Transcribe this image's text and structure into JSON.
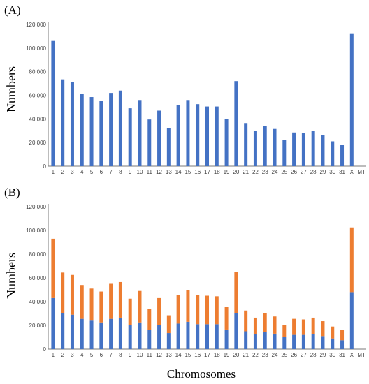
{
  "figure": {
    "xlabel": "Chromosomes",
    "colors": {
      "blue": "#4472c4",
      "orange": "#ed7d31"
    }
  },
  "chart_data": [
    {
      "type": "bar",
      "panel_label": "(A)",
      "ylabel": "Numbers",
      "ylim": [
        0,
        120000
      ],
      "yticks": [
        "0",
        "20,000",
        "40,000",
        "60,000",
        "80,000",
        "100,000",
        "120,000"
      ],
      "categories": [
        "1",
        "2",
        "3",
        "4",
        "5",
        "6",
        "7",
        "8",
        "9",
        "10",
        "11",
        "12",
        "13",
        "14",
        "15",
        "16",
        "17",
        "18",
        "19",
        "20",
        "21",
        "22",
        "23",
        "24",
        "25",
        "26",
        "27",
        "28",
        "29",
        "30",
        "31",
        "X",
        "MT"
      ],
      "series": [
        {
          "color": "#4472c4",
          "values": [
            106000,
            73500,
            71500,
            61000,
            58500,
            55500,
            62000,
            64000,
            49000,
            56000,
            39500,
            47000,
            32500,
            51500,
            56000,
            52500,
            50500,
            50500,
            40000,
            72000,
            36500,
            30000,
            34000,
            31500,
            22000,
            28500,
            28000,
            30000,
            26500,
            21000,
            18000,
            112500,
            0
          ]
        }
      ]
    },
    {
      "type": "bar",
      "stacked": true,
      "panel_label": "(B)",
      "ylabel": "Numbers",
      "ylim": [
        0,
        120000
      ],
      "yticks": [
        "0",
        "20,000",
        "40,000",
        "60,000",
        "80,000",
        "100,000",
        "120,000"
      ],
      "categories": [
        "1",
        "2",
        "3",
        "4",
        "5",
        "6",
        "7",
        "8",
        "9",
        "10",
        "11",
        "12",
        "13",
        "14",
        "15",
        "16",
        "17",
        "18",
        "19",
        "20",
        "21",
        "22",
        "23",
        "24",
        "25",
        "26",
        "27",
        "28",
        "29",
        "30",
        "31",
        "X",
        "MT"
      ],
      "series": [
        {
          "color": "#4472c4",
          "values": [
            43000,
            30000,
            29000,
            25500,
            24000,
            22500,
            25500,
            26500,
            20000,
            22500,
            16000,
            20500,
            13500,
            21500,
            23000,
            21000,
            21000,
            21000,
            16500,
            30000,
            15000,
            12500,
            14500,
            13000,
            10000,
            12000,
            12000,
            12500,
            11000,
            9000,
            7500,
            48000,
            0
          ]
        },
        {
          "color": "#ed7d31",
          "values": [
            50000,
            34500,
            33500,
            28500,
            27000,
            26000,
            29500,
            30000,
            22500,
            26500,
            18000,
            22500,
            15000,
            24000,
            26500,
            24500,
            24000,
            23500,
            19000,
            35000,
            17500,
            14000,
            15500,
            14500,
            10000,
            13500,
            13000,
            14000,
            12500,
            10000,
            8500,
            54500,
            0
          ]
        }
      ]
    }
  ]
}
